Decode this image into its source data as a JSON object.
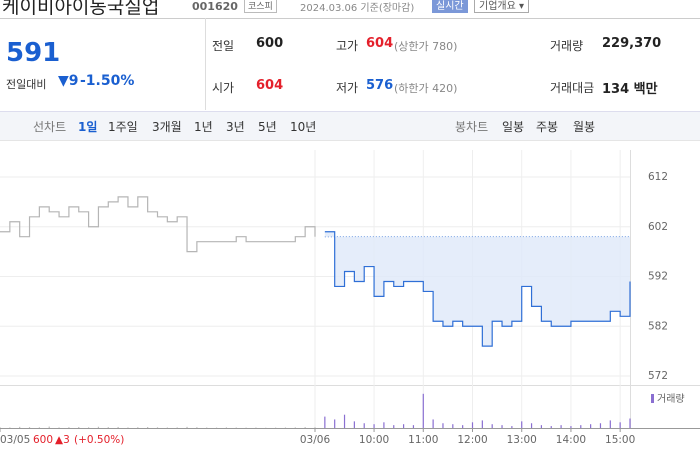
{
  "header": {
    "title": "케이비아이동국실업",
    "code": "001620",
    "market": "코스피",
    "date": "2024.03.06 기준(장마감)",
    "realtime": "실시간",
    "company": "기업개요"
  },
  "quote": {
    "price": "591",
    "change_label": "전일대비",
    "change": "9",
    "rate": "-1.50%",
    "rows": [
      [
        {
          "label": "전일",
          "value": "600"
        },
        {
          "label": "고가",
          "value": "604",
          "extra": "(상한가 780)"
        },
        {
          "label": "거래량",
          "value": "229,370"
        }
      ],
      [
        {
          "label": "시가",
          "value": "604"
        },
        {
          "label": "저가",
          "value": "576",
          "extra": "(하한가 420)"
        },
        {
          "label": "거래대금",
          "value": "134 백만"
        }
      ]
    ]
  },
  "tabs": {
    "line_label": "선차트",
    "line": [
      "1일",
      "1주일",
      "3개월",
      "1년",
      "3년",
      "5년",
      "10년"
    ],
    "candle_label": "봉차트",
    "candle": [
      "일봉",
      "주봉",
      "월봉"
    ]
  },
  "chart_data": {
    "type": "line",
    "x": [
      0,
      1,
      2,
      3,
      4,
      5,
      6,
      7,
      8,
      9,
      10,
      11,
      12,
      13,
      14,
      15,
      16,
      17,
      18,
      19,
      20,
      21,
      22,
      23,
      24,
      25,
      26,
      27,
      28,
      29,
      30,
      31,
      32,
      33,
      34,
      35,
      36,
      37,
      38,
      39,
      40,
      41,
      42,
      43,
      44,
      45,
      46,
      47,
      48,
      49,
      50,
      51,
      52,
      53,
      54,
      55,
      56,
      57,
      58,
      59,
      60,
      61,
      62,
      63,
      64
    ],
    "xlim": [
      0,
      64
    ],
    "xticks": [
      {
        "value": 0,
        "label": "03/05"
      },
      {
        "value": 32,
        "label": "03/06"
      },
      {
        "value": 38,
        "label": "10:00"
      },
      {
        "value": 43,
        "label": "11:00"
      },
      {
        "value": 48,
        "label": "12:00"
      },
      {
        "value": 53,
        "label": "13:00"
      },
      {
        "value": 58,
        "label": "14:00"
      },
      {
        "value": 63,
        "label": "15:00"
      }
    ],
    "ylim": [
      572,
      612
    ],
    "yticks": [
      612,
      602,
      592,
      582,
      572
    ],
    "reference": 600,
    "prev_info": {
      "price": "600",
      "change": "▲3",
      "rate": "(+0.50%)"
    },
    "series": [
      {
        "name": "03/05",
        "color": "#b5b5b5",
        "values": [
          601,
          603,
          600,
          604,
          606,
          605,
          604,
          606,
          605,
          602,
          606,
          607,
          608,
          606,
          608,
          605,
          604,
          603,
          604,
          597,
          599,
          599,
          599,
          599,
          600,
          599,
          599,
          599,
          599,
          599,
          600,
          602,
          600,
          null,
          null,
          null,
          null,
          null,
          null,
          null,
          null,
          null,
          null,
          null,
          null,
          null,
          null,
          null,
          null,
          null,
          null,
          null,
          null,
          null,
          null,
          null,
          null,
          null,
          null,
          null,
          null,
          null,
          null,
          null,
          null
        ]
      },
      {
        "name": "03/06",
        "color": "#2f6fd6",
        "values": [
          null,
          null,
          null,
          null,
          null,
          null,
          null,
          null,
          null,
          null,
          null,
          null,
          null,
          null,
          null,
          null,
          null,
          null,
          null,
          null,
          null,
          null,
          null,
          null,
          null,
          null,
          null,
          null,
          null,
          null,
          null,
          null,
          null,
          601,
          590,
          593,
          591,
          594,
          588,
          591,
          590,
          591,
          591,
          589,
          583,
          582,
          583,
          582,
          582,
          578,
          583,
          582,
          583,
          590,
          586,
          583,
          582,
          582,
          583,
          583,
          583,
          583,
          585,
          584,
          591
        ]
      }
    ],
    "volume_name": "거래량",
    "vlim": [
      0,
      40000
    ],
    "volume": [
      800,
      600,
      1200,
      900,
      700,
      1500,
      600,
      800,
      1000,
      700,
      1300,
      900,
      1100,
      600,
      800,
      1000,
      700,
      500,
      600,
      1200,
      800,
      500,
      400,
      600,
      500,
      400,
      500,
      300,
      400,
      500,
      600,
      900,
      800,
      12000,
      9000,
      14000,
      7000,
      5000,
      4000,
      6000,
      3000,
      4000,
      3000,
      36000,
      9000,
      5000,
      4000,
      3000,
      6000,
      8000,
      4000,
      3000,
      2000,
      7000,
      5000,
      3000,
      2000,
      3000,
      2000,
      3000,
      4000,
      5000,
      8000,
      6000,
      10000
    ]
  }
}
